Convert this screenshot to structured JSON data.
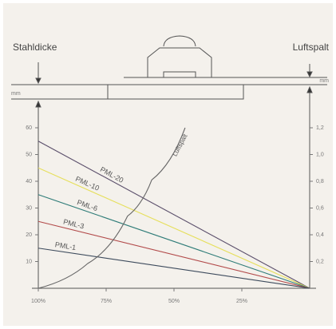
{
  "diagram": {
    "left_label": "Stahldicke",
    "right_label": "Luftspalt",
    "left_unit": "mm",
    "right_unit": "mm"
  },
  "chart_data": {
    "type": "line",
    "xlim": [
      100,
      0
    ],
    "xticks": [
      {
        "value": 100,
        "label": "100%"
      },
      {
        "value": 75,
        "label": "75%"
      },
      {
        "value": 50,
        "label": "50%"
      },
      {
        "value": 25,
        "label": "25%"
      }
    ],
    "ylim": [
      0,
      60
    ],
    "yticks": [
      10,
      20,
      30,
      40,
      50,
      60
    ],
    "y2lim": [
      0,
      1.2
    ],
    "y2ticks": [
      {
        "value": 0.2,
        "label": "0,2"
      },
      {
        "value": 0.4,
        "label": "0,4"
      },
      {
        "value": 0.6,
        "label": "0,6"
      },
      {
        "value": 0.8,
        "label": "0,8"
      },
      {
        "value": 1.0,
        "label": "1,0"
      },
      {
        "value": 1.2,
        "label": "1,2"
      }
    ],
    "series": [
      {
        "name": "PML-20",
        "color": "#5b4f6b",
        "x": [
          100,
          0
        ],
        "values": [
          55,
          0
        ]
      },
      {
        "name": "PML-10",
        "color": "#e6df5c",
        "x": [
          100,
          0
        ],
        "values": [
          45,
          0
        ]
      },
      {
        "name": "PML-6",
        "color": "#2f7c78",
        "x": [
          100,
          0
        ],
        "values": [
          35,
          0
        ]
      },
      {
        "name": "PML-3",
        "color": "#b24a4a",
        "x": [
          100,
          0
        ],
        "values": [
          25,
          0
        ]
      },
      {
        "name": "PML-1",
        "color": "#3c4a5c",
        "x": [
          100,
          0
        ],
        "values": [
          15,
          0
        ]
      },
      {
        "name": "Luftspalt",
        "color": "#666666",
        "axis": "y2",
        "x": [
          100,
          81.8,
          67.1,
          58.2,
          45.9
        ],
        "values": [
          0,
          0.185,
          0.54,
          0.81,
          1.2
        ]
      }
    ]
  }
}
